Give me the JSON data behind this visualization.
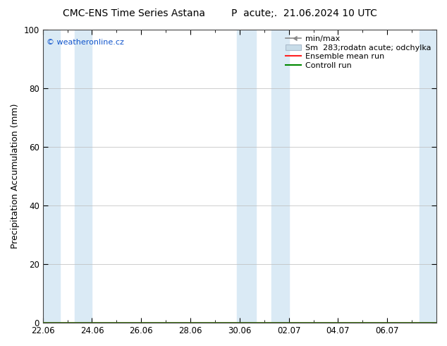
{
  "title_left": "CMC-ENS Time Series Astana",
  "title_right": "P  acute;.  21.06.2024 10 UTC",
  "ylabel": "Precipitation Accumulation (mm)",
  "watermark": "© weatheronline.cz",
  "ylim": [
    0,
    100
  ],
  "yticks": [
    0,
    20,
    40,
    60,
    80,
    100
  ],
  "xlim": [
    0,
    16
  ],
  "xtick_labels": [
    "22.06",
    "24.06",
    "26.06",
    "28.06",
    "30.06",
    "02.07",
    "04.07",
    "06.07"
  ],
  "xtick_positions": [
    0,
    2,
    4,
    6,
    8,
    10,
    12,
    14
  ],
  "blue_bands": [
    {
      "xmin": -0.05,
      "xmax": 0.7,
      "color": "#daeaf5"
    },
    {
      "xmin": 1.3,
      "xmax": 2.0,
      "color": "#daeaf5"
    },
    {
      "xmin": 7.9,
      "xmax": 8.65,
      "color": "#daeaf5"
    },
    {
      "xmin": 9.3,
      "xmax": 10.0,
      "color": "#daeaf5"
    },
    {
      "xmin": 15.3,
      "xmax": 16.1,
      "color": "#daeaf5"
    }
  ],
  "background_color": "#ffffff",
  "plot_bg_color": "#ffffff",
  "grid_color": "#bbbbbb",
  "title_fontsize": 10,
  "tick_fontsize": 8.5,
  "ylabel_fontsize": 9,
  "legend_fontsize": 8
}
